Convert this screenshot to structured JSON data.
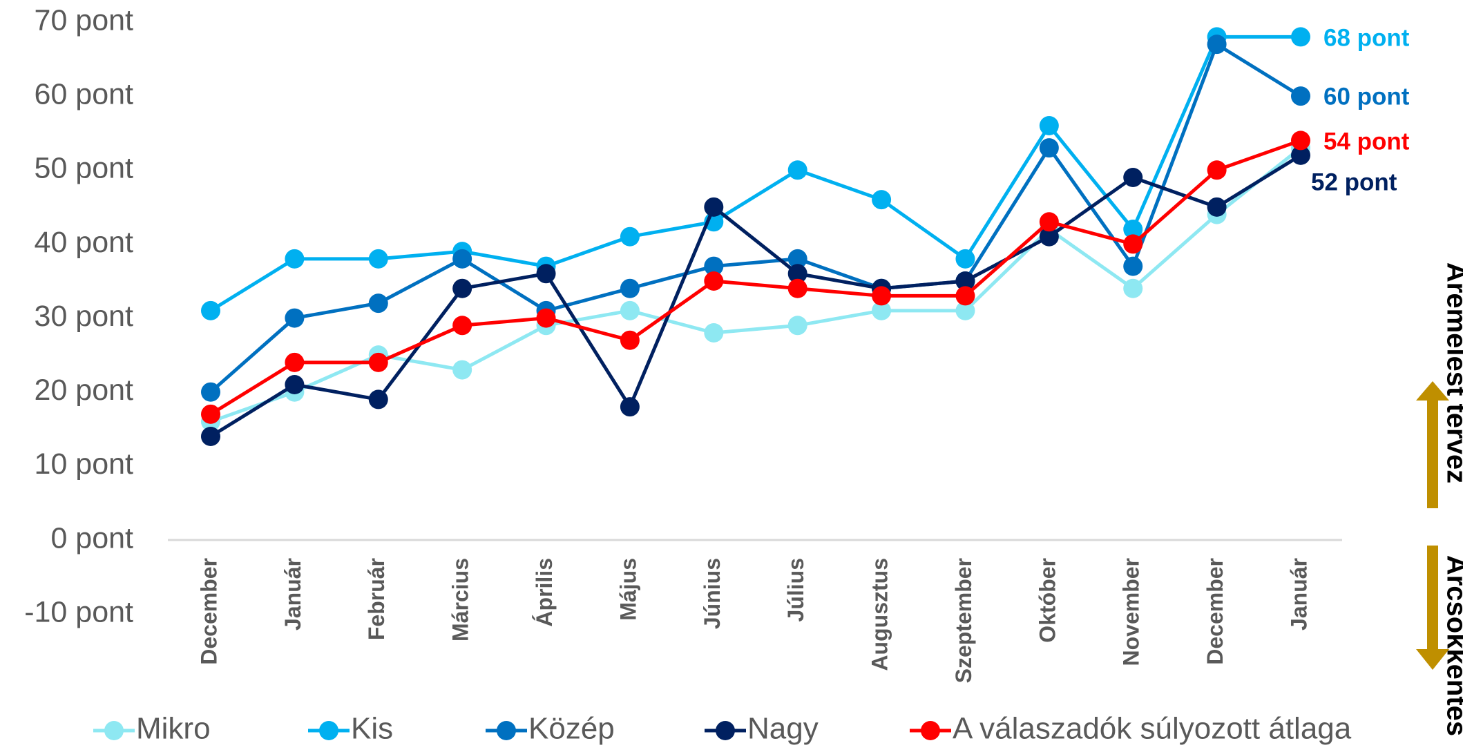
{
  "chart_data": {
    "type": "line",
    "categories": [
      "December",
      "Január",
      "Február",
      "Március",
      "Április",
      "Május",
      "Június",
      "Július",
      "Augusztus",
      "Szeptember",
      "Október",
      "November",
      "December",
      "Január"
    ],
    "series": [
      {
        "name": "Mikro",
        "color": "#8EE8F2",
        "values": [
          16,
          20,
          25,
          23,
          29,
          31,
          28,
          29,
          31,
          31,
          42,
          34,
          44,
          53
        ]
      },
      {
        "name": "Kis",
        "color": "#00B0F0",
        "values": [
          31,
          38,
          38,
          39,
          37,
          41,
          43,
          50,
          46,
          38,
          56,
          42,
          68,
          68
        ],
        "value_labels": [
          null,
          null,
          null,
          null,
          null,
          null,
          null,
          null,
          null,
          null,
          null,
          null,
          null,
          "68 pont"
        ]
      },
      {
        "name": "Közép",
        "color": "#0070C0",
        "values": [
          20,
          30,
          32,
          38,
          31,
          34,
          37,
          38,
          34,
          35,
          53,
          37,
          67,
          60
        ],
        "value_labels": [
          null,
          null,
          null,
          null,
          null,
          null,
          null,
          null,
          null,
          null,
          null,
          null,
          null,
          "60 pont"
        ]
      },
      {
        "name": "Nagy",
        "color": "#002060",
        "values": [
          14,
          21,
          19,
          34,
          36,
          18,
          45,
          36,
          34,
          35,
          41,
          49,
          45,
          52
        ],
        "value_labels": [
          null,
          null,
          null,
          null,
          null,
          null,
          null,
          null,
          null,
          null,
          null,
          null,
          null,
          "52 pont"
        ]
      },
      {
        "name": "A válaszadók súlyozott átlaga",
        "color": "#FF0000",
        "values": [
          17,
          24,
          24,
          29,
          30,
          27,
          35,
          34,
          33,
          33,
          43,
          40,
          50,
          54
        ],
        "value_labels": [
          null,
          null,
          null,
          null,
          null,
          null,
          null,
          null,
          null,
          null,
          null,
          null,
          null,
          "54 pont"
        ]
      }
    ],
    "ylim": [
      -10,
      70
    ],
    "yticks": [
      {
        "value": -10,
        "label": "-10 pont"
      },
      {
        "value": 0,
        "label": "0 pont"
      },
      {
        "value": 10,
        "label": "10 pont"
      },
      {
        "value": 20,
        "label": "20 pont"
      },
      {
        "value": 30,
        "label": "30 pont"
      },
      {
        "value": 40,
        "label": "40 pont"
      },
      {
        "value": 50,
        "label": "50 pont"
      },
      {
        "value": 60,
        "label": "60 pont"
      },
      {
        "value": 70,
        "label": "70 pont"
      }
    ],
    "grid": false,
    "legend": "bottom",
    "annotations": [
      "Áremelést tervez",
      "Árcsökkentés"
    ]
  }
}
